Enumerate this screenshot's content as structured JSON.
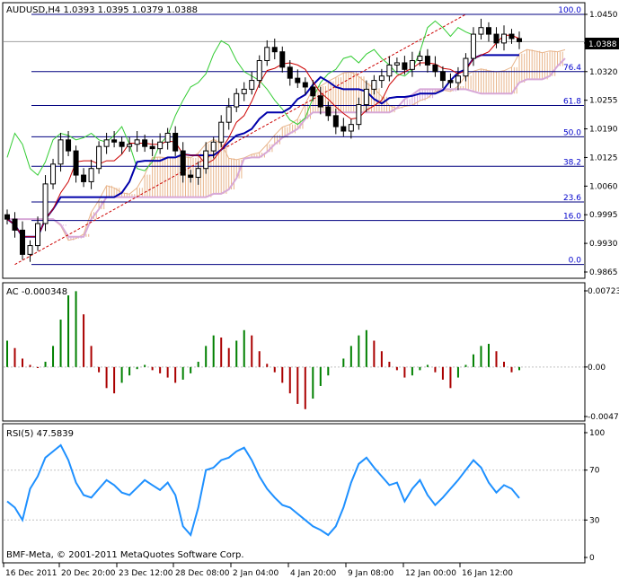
{
  "chart_data": [
    {
      "type": "candlestick",
      "title": "AUDUSD,H4  1.0393 1.0395 1.0379 1.0388",
      "current_price": "1.0388",
      "ylim": [
        0.9865,
        1.045
      ],
      "y_ticks": [
        "1.0450",
        "1.0385",
        "1.0320",
        "1.0255",
        "1.0190",
        "1.0125",
        "1.0060",
        "0.9995",
        "0.9930",
        "0.9865"
      ],
      "fibonacci": {
        "levels": [
          {
            "label": "100.0",
            "price": 1.045
          },
          {
            "label": "76.4",
            "price": 1.032
          },
          {
            "label": "61.8",
            "price": 1.0243
          },
          {
            "label": "50.0",
            "price": 1.0172
          },
          {
            "label": "38.2",
            "price": 1.0105
          },
          {
            "label": "23.6",
            "price": 1.0024
          },
          {
            "label": "16.0",
            "price": 0.9982
          },
          {
            "label": "0.0",
            "price": 0.9882
          }
        ]
      },
      "indicator": "Ichimoku Kinko Hyo",
      "close_series": [
        0.9985,
        0.996,
        0.9905,
        0.9925,
        0.9975,
        1.0065,
        1.011,
        1.0165,
        1.014,
        1.0085,
        1.007,
        1.01,
        1.015,
        1.0165,
        1.016,
        1.015,
        1.0155,
        1.0165,
        1.015,
        1.0145,
        1.016,
        1.018,
        1.014,
        1.0085,
        1.008,
        1.01,
        1.014,
        1.016,
        1.0205,
        1.024,
        1.027,
        1.028,
        1.03,
        1.0345,
        1.0375,
        1.0365,
        1.033,
        1.0305,
        1.0295,
        1.0285,
        1.0265,
        1.024,
        1.022,
        1.0195,
        1.0185,
        1.02,
        1.0245,
        1.028,
        1.03,
        1.031,
        1.0335,
        1.034,
        1.0325,
        1.0345,
        1.0355,
        1.0335,
        1.032,
        1.03,
        1.0295,
        1.031,
        1.035,
        1.0405,
        1.042,
        1.0405,
        1.0385,
        1.0405,
        1.0395,
        1.0388
      ]
    },
    {
      "type": "histogram",
      "title": "AC -0.000348",
      "y_ticks": [
        "0.00723",
        "0.00",
        "-0.00470"
      ],
      "ylim": [
        -0.0047,
        0.00723
      ],
      "values": [
        0.0025,
        0.0018,
        0.0008,
        0.0002,
        -0.0001,
        0.0005,
        0.002,
        0.0045,
        0.0068,
        0.0072,
        0.005,
        0.002,
        -0.0005,
        -0.002,
        -0.0025,
        -0.0015,
        -0.0008,
        -0.0002,
        0.0002,
        -0.0003,
        -0.0006,
        -0.001,
        -0.0015,
        -0.0012,
        -0.0006,
        0.0005,
        0.002,
        0.003,
        0.0028,
        0.0018,
        0.0025,
        0.0035,
        0.003,
        0.0015,
        0.0003,
        -0.0005,
        -0.0015,
        -0.0025,
        -0.0035,
        -0.004,
        -0.003,
        -0.0018,
        -0.0008,
        0.0,
        0.0008,
        0.002,
        0.003,
        0.0035,
        0.0025,
        0.0015,
        0.0005,
        -0.0003,
        -0.001,
        -0.0008,
        -0.0003,
        0.0002,
        -0.0005,
        -0.0012,
        -0.002,
        -0.001,
        0.0002,
        0.0012,
        0.002,
        0.0022,
        0.0015,
        0.0005,
        -0.0005,
        -0.0003
      ]
    },
    {
      "type": "line",
      "title": "RSI(5) 47.5839",
      "y_ticks": [
        "100",
        "70",
        "30",
        "0"
      ],
      "ylim": [
        0,
        100
      ],
      "levels": [
        70,
        30
      ],
      "values": [
        45,
        40,
        30,
        55,
        65,
        80,
        85,
        90,
        78,
        60,
        50,
        48,
        55,
        62,
        58,
        52,
        50,
        56,
        62,
        58,
        54,
        60,
        50,
        25,
        18,
        40,
        70,
        72,
        78,
        80,
        85,
        88,
        78,
        65,
        55,
        48,
        42,
        40,
        35,
        30,
        25,
        22,
        18,
        25,
        40,
        60,
        75,
        80,
        72,
        65,
        58,
        60,
        45,
        55,
        62,
        50,
        42,
        48,
        55,
        62,
        70,
        78,
        72,
        60,
        52,
        58,
        55,
        47.5839
      ]
    }
  ],
  "x_labels": [
    "16 Dec 2011",
    "20 Dec 20:00",
    "23 Dec 12:00",
    "28 Dec 08:00",
    "2 Jan 04:00",
    "4 Jan 20:00",
    "9 Jan 08:00",
    "12 Jan 00:00",
    "16 Jan 12:00"
  ],
  "footer": "BMF-Meta, © 2001-2011 MetaQuotes Software Corp.",
  "colors": {
    "bull": "#000000",
    "bear": "#000000",
    "tenkan": "#cc0000",
    "kijun": "#0000aa",
    "chikou": "#33cc33",
    "kumo_up": "#e8b48a",
    "kumo_down": "#d7a8d7",
    "fib": "#000080",
    "trend": "#cc0000",
    "rsi": "#1e90ff",
    "ac_up": "#008000",
    "ac_down": "#aa0000",
    "grid": "#c0c0c0"
  }
}
